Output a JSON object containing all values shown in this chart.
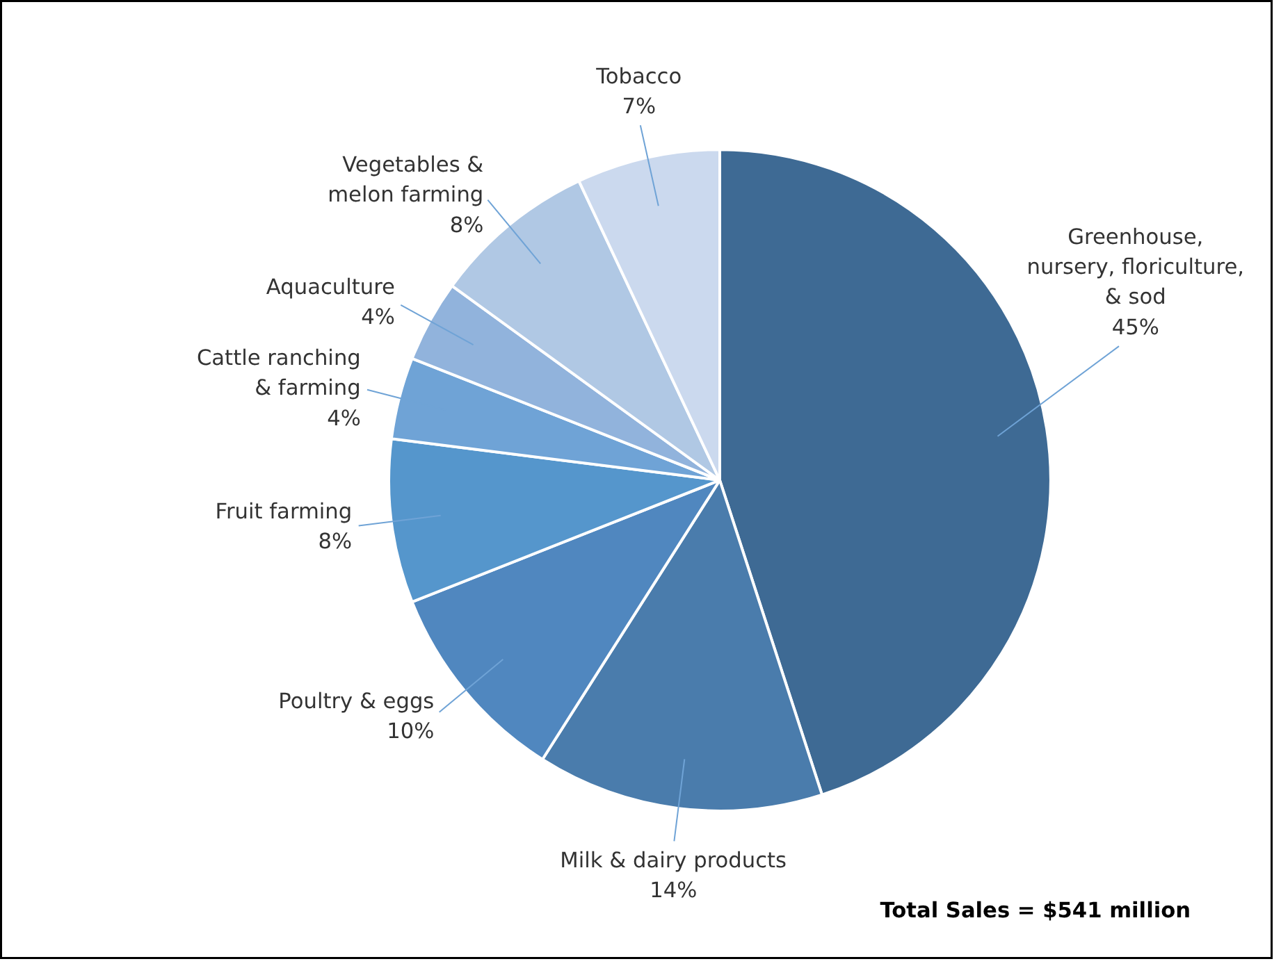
{
  "chart_data": {
    "type": "pie",
    "categories": [
      "Greenhouse,\nnursery, floriculture,\n& sod",
      "Milk & dairy products",
      "Poultry & eggs",
      "Fruit farming",
      "Cattle ranching\n& farming",
      "Aquaculture",
      "Vegetables &\nmelon farming",
      "Tobacco"
    ],
    "values": [
      45,
      14,
      10,
      8,
      4,
      4,
      8,
      7
    ],
    "colors": [
      "#3e6a94",
      "#4a7cac",
      "#5087bf",
      "#5596cc",
      "#6fa3d6",
      "#91b3dc",
      "#b0c8e4",
      "#cbd9ee"
    ],
    "value_labels": [
      "45%",
      "14%",
      "10%",
      "8%",
      "4%",
      "4%",
      "8%",
      "7%"
    ],
    "annotations": [
      "Total Sales = $541 million"
    ]
  }
}
